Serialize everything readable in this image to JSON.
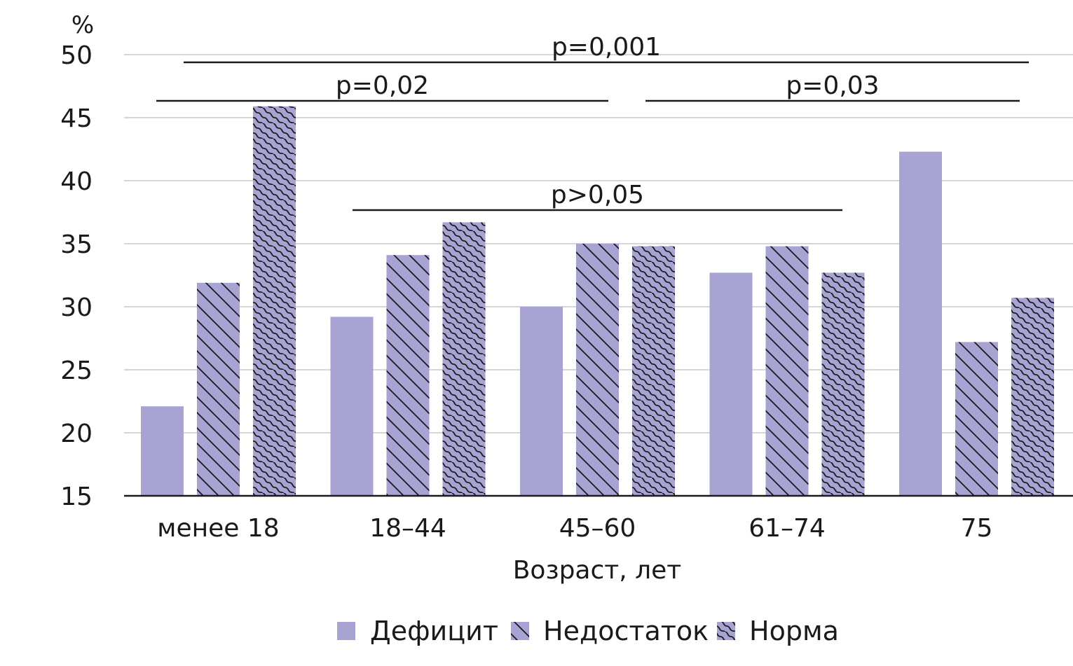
{
  "chart_data": {
    "type": "bar",
    "title": "",
    "ylabel": "%",
    "xlabel": "Возраст, лет",
    "ylim": [
      15,
      50
    ],
    "yticks": [
      15,
      20,
      25,
      30,
      35,
      40,
      45,
      50
    ],
    "grid": true,
    "categories": [
      "менее 18",
      "18–44",
      "45–60",
      "61–74",
      "75"
    ],
    "series": [
      {
        "name": "Дефицит",
        "pattern": "solid",
        "values": [
          22.1,
          29.2,
          30.0,
          32.7,
          42.3
        ]
      },
      {
        "name": "Недостаток",
        "pattern": "diagonal",
        "values": [
          31.9,
          34.1,
          35.0,
          34.8,
          27.2
        ]
      },
      {
        "name": "Норма",
        "pattern": "wavy",
        "values": [
          45.9,
          36.7,
          34.8,
          32.7,
          30.7
        ]
      }
    ],
    "annotations": [
      {
        "label": "p=0,001",
        "from_category": "менее 18",
        "to_category": "75",
        "level": 1
      },
      {
        "label": "p=0,02",
        "from_category": "менее 18",
        "to_category": "45–60",
        "level": 2
      },
      {
        "label": "p=0,03",
        "from_category": "61–74",
        "to_category": "75",
        "level": 2
      },
      {
        "label": "p>0,05",
        "from_category": "18–44",
        "to_category": "61–74",
        "level": 3
      }
    ],
    "legend_position": "bottom-center",
    "colors": {
      "bar": "#a7a3d3",
      "hatch": "#1a1a1a",
      "grid": "#c8c8c8",
      "axis": "#1a1a1a"
    }
  }
}
